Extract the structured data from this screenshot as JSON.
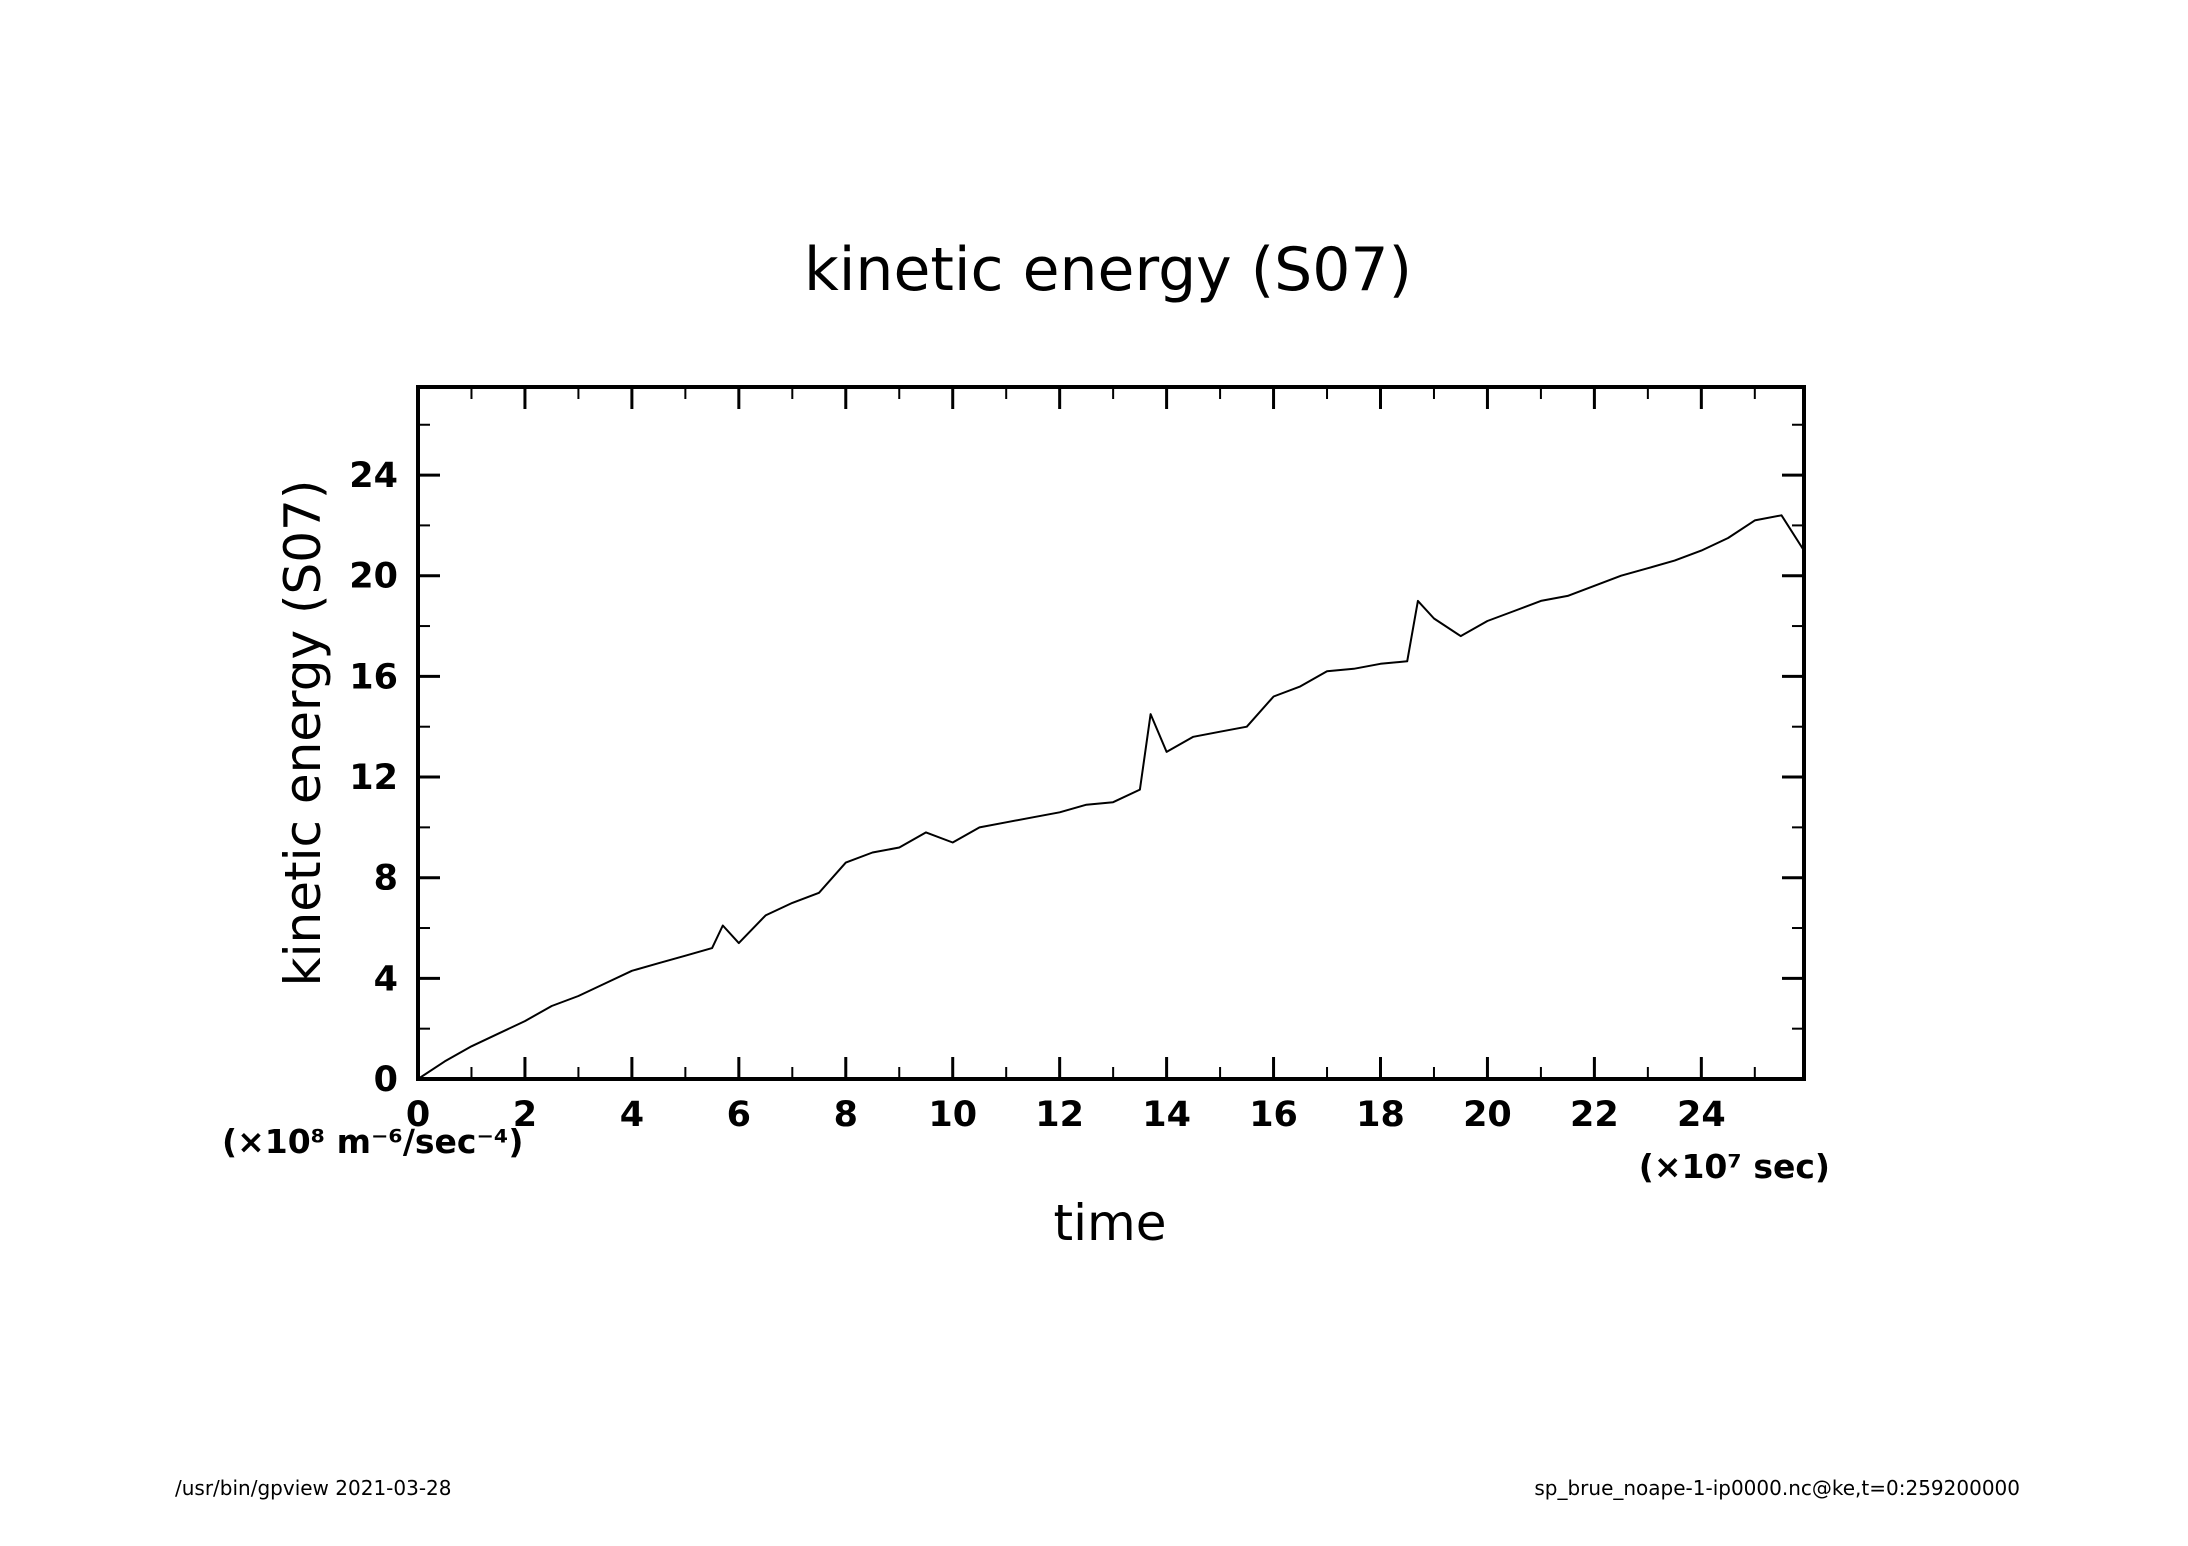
{
  "chart_data": {
    "type": "line",
    "title": "kinetic energy (S07)",
    "xlabel": "time",
    "ylabel": "kinetic energy (S07)",
    "x_unit_label": "(×10⁷ sec)",
    "y_unit_label": "(×10⁸ m⁻⁶/sec⁻⁴)",
    "xlim": [
      0,
      25.92
    ],
    "ylim": [
      0,
      27.5
    ],
    "x_ticks": [
      0,
      2,
      4,
      6,
      8,
      10,
      12,
      14,
      16,
      18,
      20,
      22,
      24
    ],
    "y_ticks": [
      0,
      4,
      8,
      12,
      16,
      20,
      24
    ],
    "grid": false,
    "series": [
      {
        "x": [
          0,
          0.5,
          1,
          1.5,
          2,
          2.5,
          3,
          3.5,
          4,
          4.5,
          5,
          5.5,
          5.7,
          6,
          6.5,
          7,
          7.5,
          8,
          8.5,
          9,
          9.5,
          10,
          10.5,
          11,
          11.5,
          12,
          12.5,
          13,
          13.5,
          13.7,
          14,
          14.5,
          15,
          15.5,
          16,
          16.5,
          17,
          17.5,
          18,
          18.5,
          18.7,
          19,
          19.5,
          20,
          20.5,
          21,
          21.5,
          22,
          22.5,
          23,
          23.5,
          24,
          24.5,
          25,
          25.5,
          25.92
        ],
        "y": [
          0,
          0.7,
          1.3,
          1.8,
          2.3,
          2.9,
          3.3,
          3.8,
          4.3,
          4.6,
          4.9,
          5.2,
          6.1,
          5.4,
          6.5,
          7.0,
          7.4,
          8.6,
          9.0,
          9.2,
          9.8,
          9.4,
          10.0,
          10.2,
          10.4,
          10.6,
          10.9,
          11.0,
          11.5,
          14.5,
          13.0,
          13.6,
          13.8,
          14.0,
          15.2,
          15.6,
          16.2,
          16.3,
          16.5,
          16.6,
          19.0,
          18.3,
          17.6,
          18.2,
          18.6,
          19.0,
          19.2,
          19.6,
          20.0,
          20.3,
          20.6,
          21.0,
          21.5,
          22.2,
          22.4,
          21.0
        ]
      }
    ]
  },
  "footer": {
    "left": "/usr/bin/gpview   2021-03-28",
    "right": "sp_brue_noape-1-ip0000.nc@ke,t=0:259200000"
  }
}
